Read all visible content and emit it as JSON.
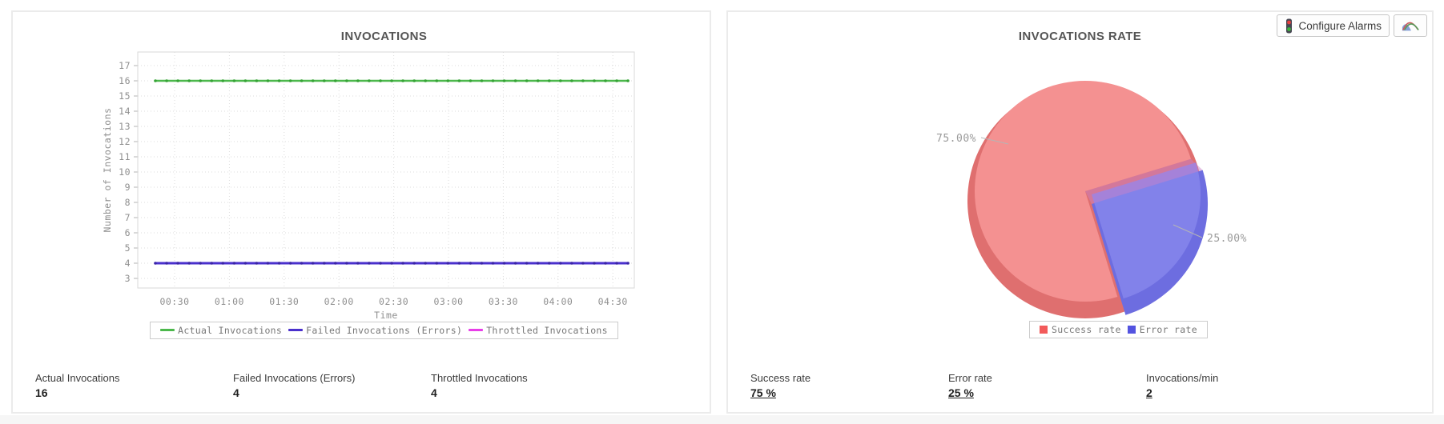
{
  "left_panel": {
    "title": "INVOCATIONS",
    "stats": [
      {
        "label": "Actual Invocations",
        "value": "16"
      },
      {
        "label": "Failed Invocations (Errors)",
        "value": "4"
      },
      {
        "label": "Throttled Invocations",
        "value": "4"
      }
    ]
  },
  "right_panel": {
    "title": "INVOCATIONS RATE",
    "toolbar": {
      "configure_alarms_label": "Configure Alarms",
      "alarm_icon": "traffic-light-icon",
      "chart_button_icon": "line-chart-icon"
    },
    "stats": [
      {
        "label": "Success rate",
        "value": "75 %"
      },
      {
        "label": "Error rate",
        "value": "25 %"
      },
      {
        "label": "Invocations/min",
        "value": "2"
      }
    ]
  },
  "chart_data": [
    {
      "type": "line",
      "title": "INVOCATIONS",
      "xlabel": "Time",
      "ylabel": "Number of Invocations",
      "x_ticks": [
        "00:30",
        "01:00",
        "01:30",
        "02:00",
        "02:30",
        "03:00",
        "03:30",
        "04:00",
        "04:30"
      ],
      "y_ticks": [
        17,
        16,
        15,
        14,
        13,
        12,
        11,
        10,
        9,
        8,
        7,
        6,
        5,
        4,
        3
      ],
      "ylim": [
        2.4,
        17.9
      ],
      "grid": true,
      "legend_position": "bottom",
      "series": [
        {
          "name": "Actual Invocations",
          "constant_value": 16,
          "color": "#4cb84c",
          "marker_color": "#35a335",
          "width": 2.6,
          "visible": true
        },
        {
          "name": "Failed Invocations (Errors)",
          "constant_value": 4,
          "color": "#4a30cc",
          "marker_color": "#3a24a8",
          "width": 3,
          "visible": true
        },
        {
          "name": "Throttled Invocations",
          "constant_value": 4,
          "color": "#e83ee8",
          "marker_color": "#c92cc9",
          "width": 2.6,
          "visible": false
        }
      ]
    },
    {
      "type": "pie",
      "title": "INVOCATIONS RATE",
      "style": "3d",
      "start_angle_deg": -17,
      "legend_position": "bottom",
      "slices": [
        {
          "label": "Success rate",
          "value": 75,
          "display": "75.00%",
          "color": "#f49191",
          "depth_color": "#df6f6f",
          "legend_color": "#f25a5a"
        },
        {
          "label": "Error rate",
          "value": 25,
          "display": "25.00%",
          "color": "#8282ea",
          "depth_color": "#6d6de0",
          "legend_color": "#5353e0"
        }
      ]
    }
  ]
}
